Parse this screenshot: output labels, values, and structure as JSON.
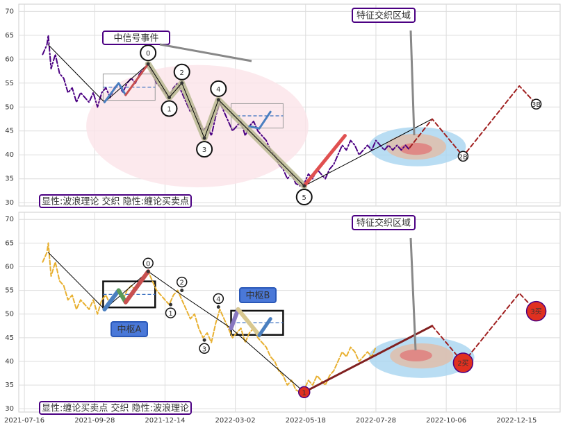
{
  "chart_data": [
    {
      "type": "line",
      "xlim": [
        -4,
        381
      ],
      "xticks": [
        0,
        50,
        100,
        150,
        200,
        250,
        300,
        350
      ],
      "ylim": [
        29.3,
        71.5
      ],
      "yticks": [
        30,
        35,
        40,
        45,
        50,
        55,
        60,
        65,
        70
      ],
      "grid": true,
      "regions": [
        {
          "x": [
            44,
            202
          ],
          "y": [
            33.2,
            58.8
          ],
          "color": "#fbe4e8"
        },
        {
          "x": [
            245,
            314
          ],
          "y": [
            37.6,
            45.8
          ],
          "color": "#a8d4f0"
        },
        {
          "x": [
            257,
            300
          ],
          "y": [
            39,
            44.4
          ],
          "color": "#e2bda6"
        },
        {
          "x": [
            267,
            290
          ],
          "y": [
            40,
            42.5
          ],
          "color": "#e07a7a"
        }
      ],
      "zones": [
        {
          "x": [
            56,
            93
          ],
          "y": [
            51.4,
            56.9
          ]
        },
        {
          "x": [
            147,
            184
          ],
          "y": [
            45.6,
            50.7
          ]
        }
      ],
      "series": [
        {
          "color": "#4b0082",
          "width": 2,
          "dash": "7 3 2 3",
          "x": [
            13,
            16,
            17,
            19,
            22,
            25,
            28,
            31,
            34,
            37,
            40,
            43,
            46,
            49,
            52,
            55,
            58,
            61,
            64,
            67,
            70,
            73,
            76,
            79,
            82,
            85,
            88,
            91,
            94,
            97,
            100,
            103,
            106,
            109,
            112,
            115,
            118,
            121,
            124,
            127,
            130,
            133,
            136,
            139,
            142,
            145,
            148,
            151,
            154,
            157,
            160,
            163,
            166,
            169,
            172,
            175,
            178,
            181,
            184,
            187,
            190,
            193,
            196,
            199,
            202,
            205,
            208,
            211,
            214,
            217,
            220,
            223,
            226,
            229,
            232,
            235,
            238,
            241,
            244,
            247,
            250,
            253,
            256,
            259,
            262,
            265,
            268,
            271,
            274
          ],
          "values": [
            61,
            63,
            65,
            58,
            61,
            57,
            56,
            53,
            54,
            51,
            53,
            52,
            51,
            53,
            50,
            53,
            54,
            52,
            54,
            55,
            53,
            55,
            56,
            55,
            57,
            58,
            59,
            57,
            55,
            54,
            53,
            52,
            54,
            55,
            53,
            51,
            49,
            50,
            47,
            45,
            46,
            44,
            48,
            51,
            49,
            47,
            45,
            46,
            47,
            44,
            46,
            47,
            45,
            44,
            43,
            41,
            40,
            38,
            37,
            35,
            36,
            34,
            33.5,
            34,
            36,
            35,
            37,
            36,
            35,
            37,
            38,
            40,
            42,
            41,
            43,
            42,
            40,
            41,
            42,
            41,
            43,
            42,
            41,
            42,
            41,
            42,
            41,
            42,
            41
          ]
        },
        {
          "color": "#b8b890",
          "width": 9,
          "opacity": 0.85,
          "x": [
            88,
            103,
            112,
            128,
            138,
            199
          ],
          "values": [
            59,
            52,
            55,
            43.5,
            51.5,
            33.5
          ]
        },
        {
          "color": "#000000",
          "width": 1,
          "x": [
            17,
            57,
            88,
            103,
            112,
            128,
            138,
            199,
            290
          ],
          "values": [
            63,
            51,
            59,
            52,
            55,
            43.5,
            51.5,
            33.5,
            47.5
          ]
        },
        {
          "color": "#4a7fc0",
          "width": 3,
          "x": [
            57,
            67,
            72
          ],
          "values": [
            51,
            55,
            52.5
          ]
        },
        {
          "color": "#c85050",
          "width": 3,
          "x": [
            72,
            88
          ],
          "values": [
            52.5,
            59
          ]
        },
        {
          "color": "#4a7fc0",
          "width": 3,
          "x": [
            160,
            167,
            175
          ],
          "values": [
            46,
            45.5,
            49
          ]
        },
        {
          "color": "#e05050",
          "width": 5,
          "x": [
            199,
            228
          ],
          "values": [
            33.5,
            44
          ]
        },
        {
          "color": "#a02020",
          "width": 2,
          "dash": "6 4",
          "x": [
            274,
            290,
            312,
            352,
            364
          ],
          "values": [
            41.5,
            47.5,
            39.7,
            54.4,
            50.6
          ]
        }
      ],
      "pivots": [
        {
          "label": "0",
          "x": 88,
          "y": 59,
          "style": "big",
          "side": "up"
        },
        {
          "label": "1",
          "x": 103,
          "y": 52,
          "style": "big",
          "side": "down"
        },
        {
          "label": "2",
          "x": 112,
          "y": 55,
          "style": "big",
          "side": "up"
        },
        {
          "label": "3",
          "x": 128,
          "y": 43.5,
          "style": "big",
          "side": "down"
        },
        {
          "label": "4",
          "x": 138,
          "y": 51.5,
          "style": "big",
          "side": "up"
        },
        {
          "label": "5",
          "x": 199,
          "y": 33.5,
          "style": "big",
          "side": "down"
        },
        {
          "label": "2B",
          "x": 312,
          "y": 39.7,
          "style": "small",
          "side": "on"
        },
        {
          "label": "3B",
          "x": 364,
          "y": 50.6,
          "style": "small",
          "side": "on"
        }
      ],
      "annotations": [
        {
          "text": "中信号事件",
          "color": "#c02020"
        },
        {
          "text": "特征交织区域",
          "color": "#1a7ab0"
        },
        {
          "text": "显性:波浪理论 交织 隐性:缠论买卖点",
          "color": "#1a7ab0"
        }
      ]
    },
    {
      "type": "line",
      "xlim": [
        -4,
        381
      ],
      "xticks": [
        {
          "value": 0,
          "label": "2021-07-16"
        },
        {
          "value": 50,
          "label": "2021-09-28"
        },
        {
          "value": 100,
          "label": "2021-12-14"
        },
        {
          "value": 150,
          "label": "2022-03-02"
        },
        {
          "value": 200,
          "label": "2022-05-18"
        },
        {
          "value": 250,
          "label": "2022-07-28"
        },
        {
          "value": 300,
          "label": "2022-10-06"
        },
        {
          "value": 350,
          "label": "2022-12-15"
        }
      ],
      "ylim": [
        29.3,
        71.5
      ],
      "yticks": [
        30,
        35,
        40,
        45,
        50,
        55,
        60,
        65,
        70
      ],
      "grid": true,
      "regions": [
        {
          "x": [
            245,
            320
          ],
          "y": [
            36.5,
            45.2
          ],
          "color": "#a8d4f0"
        },
        {
          "x": [
            260,
            305
          ],
          "y": [
            38.5,
            43.8
          ],
          "color": "#e2bda6"
        },
        {
          "x": [
            267,
            290
          ],
          "y": [
            40,
            42.5
          ],
          "color": "#e07a7a"
        }
      ],
      "zones": [
        {
          "x": [
            56,
            93
          ],
          "y": [
            51.4,
            56.9
          ]
        },
        {
          "x": [
            147,
            184
          ],
          "y": [
            45.6,
            50.7
          ]
        }
      ],
      "series": [
        {
          "color": "#e8b030",
          "width": 2,
          "dash": "6 3",
          "x": [
            13,
            16,
            17,
            19,
            22,
            25,
            28,
            31,
            34,
            37,
            40,
            43,
            46,
            49,
            52,
            55,
            58,
            61,
            64,
            67,
            70,
            73,
            76,
            79,
            82,
            85,
            88,
            91,
            94,
            97,
            100,
            103,
            106,
            109,
            112,
            115,
            118,
            121,
            124,
            127,
            130,
            133,
            136,
            139,
            142,
            145,
            148,
            151,
            154,
            157,
            160,
            163,
            166,
            169,
            172,
            175,
            178,
            181,
            184,
            187,
            190,
            193,
            196,
            199,
            202,
            205,
            208,
            211,
            214,
            217,
            220,
            223,
            226,
            229,
            232,
            235,
            238,
            241,
            244,
            247,
            250
          ],
          "values": [
            61,
            63,
            65,
            58,
            61,
            57,
            56,
            53,
            54,
            51,
            53,
            52,
            51,
            53,
            50,
            53,
            54,
            52,
            54,
            55,
            53,
            55,
            56,
            55,
            57,
            58,
            59,
            57,
            55,
            54,
            53,
            52,
            54,
            55,
            53,
            51,
            49,
            50,
            47,
            45,
            46,
            44,
            48,
            51,
            49,
            47,
            45,
            46,
            47,
            44,
            46,
            47,
            45,
            44,
            43,
            41,
            40,
            38,
            37,
            35,
            36,
            34,
            33.5,
            34,
            36,
            35,
            37,
            36,
            35,
            37,
            38,
            40,
            42,
            41,
            43,
            42,
            40,
            41,
            42,
            41,
            43
          ]
        },
        {
          "color": "#000000",
          "width": 1,
          "x": [
            17,
            57,
            88,
            112,
            147,
            199,
            290
          ],
          "values": [
            63,
            51,
            59,
            54,
            47,
            33.5,
            47.5
          ]
        },
        {
          "color": "#4a7fc0",
          "width": 6,
          "x": [
            57,
            67
          ],
          "values": [
            51,
            55
          ]
        },
        {
          "color": "#5a9a5a",
          "width": 6,
          "x": [
            67,
            72
          ],
          "values": [
            55,
            52.5
          ]
        },
        {
          "color": "#c85050",
          "width": 6,
          "x": [
            72,
            88
          ],
          "values": [
            52.5,
            59
          ]
        },
        {
          "color": "#8878c0",
          "width": 6,
          "x": [
            147,
            152
          ],
          "values": [
            47,
            51
          ]
        },
        {
          "color": "#d8c890",
          "width": 6,
          "x": [
            152,
            167
          ],
          "values": [
            51,
            45.5
          ]
        },
        {
          "color": "#4a7fc0",
          "width": 5,
          "x": [
            167,
            175
          ],
          "values": [
            45.5,
            49
          ]
        },
        {
          "color": "#802020",
          "width": 3,
          "x": [
            199,
            290
          ],
          "values": [
            33.5,
            47.5
          ]
        },
        {
          "color": "#a02020",
          "width": 2,
          "dash": "6 4",
          "x": [
            290,
            312,
            352,
            364
          ],
          "values": [
            47.5,
            39.7,
            54.4,
            50.6
          ]
        }
      ],
      "pivots": [
        {
          "label": "0",
          "x": 88,
          "y": 59,
          "style": "small",
          "side": "up"
        },
        {
          "label": "1",
          "x": 104,
          "y": 52,
          "style": "small",
          "side": "down"
        },
        {
          "label": "2",
          "x": 112,
          "y": 55,
          "style": "small",
          "side": "up"
        },
        {
          "label": "3",
          "x": 128,
          "y": 44.5,
          "style": "small",
          "side": "down"
        },
        {
          "label": "4",
          "x": 138,
          "y": 51.5,
          "style": "small",
          "side": "up"
        },
        {
          "label": "1",
          "x": 199,
          "y": 33.5,
          "style": "buy",
          "side": "on"
        },
        {
          "label": "2买",
          "x": 312,
          "y": 39.7,
          "style": "buy",
          "side": "on"
        },
        {
          "label": "3买",
          "x": 364,
          "y": 50.6,
          "style": "buy",
          "side": "on"
        }
      ],
      "annotations": [
        {
          "text": "特征交织区域",
          "color": "#1a7ab0"
        },
        {
          "text": "显性:缠论买卖点 交织 隐性:波浪理论",
          "color": "#1a7ab0"
        },
        {
          "text": "中枢A",
          "color": "#ffffff"
        },
        {
          "text": "中枢B",
          "color": "#ffffff"
        }
      ]
    }
  ]
}
